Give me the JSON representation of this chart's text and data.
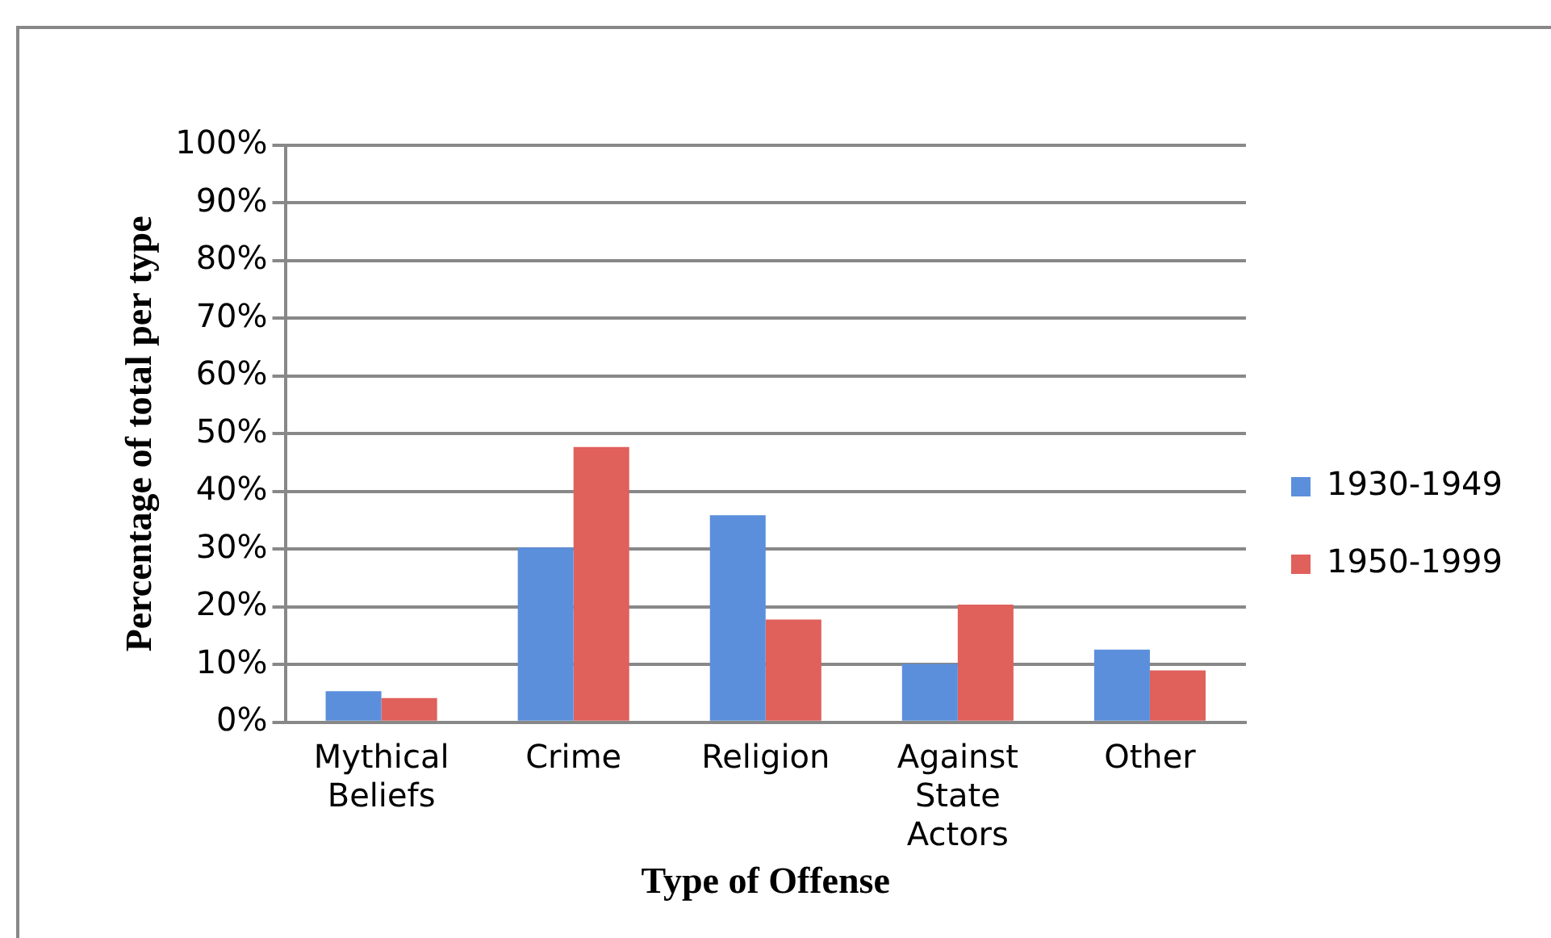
{
  "chart_data": {
    "type": "bar",
    "xlabel": "Type of Offense",
    "ylabel": "Percentage of total per type",
    "categories": [
      [
        "Mythical",
        "Beliefs"
      ],
      "Crime",
      "Religion",
      [
        "Against",
        "State",
        "Actors"
      ],
      "Other"
    ],
    "series": [
      {
        "name": "1930-1949",
        "color": "#5b8fdc",
        "values": [
          5.4,
          30.3,
          35.9,
          10.1,
          12.6
        ]
      },
      {
        "name": "1950-1999",
        "color": "#e0605c",
        "values": [
          4.2,
          47.7,
          17.8,
          20.4,
          9.0
        ]
      }
    ],
    "ylim": [
      0,
      100
    ],
    "yticks": [
      {
        "value": 0,
        "label": "0%"
      },
      {
        "value": 10,
        "label": "10%"
      },
      {
        "value": 20,
        "label": "20%"
      },
      {
        "value": 30,
        "label": "30%"
      },
      {
        "value": 40,
        "label": "40%"
      },
      {
        "value": 50,
        "label": "50%"
      },
      {
        "value": 60,
        "label": "60%"
      },
      {
        "value": 70,
        "label": "70%"
      },
      {
        "value": 80,
        "label": "80%"
      },
      {
        "value": 90,
        "label": "90%"
      },
      {
        "value": 100,
        "label": "100%"
      }
    ],
    "grid": "y",
    "legend": "right"
  }
}
